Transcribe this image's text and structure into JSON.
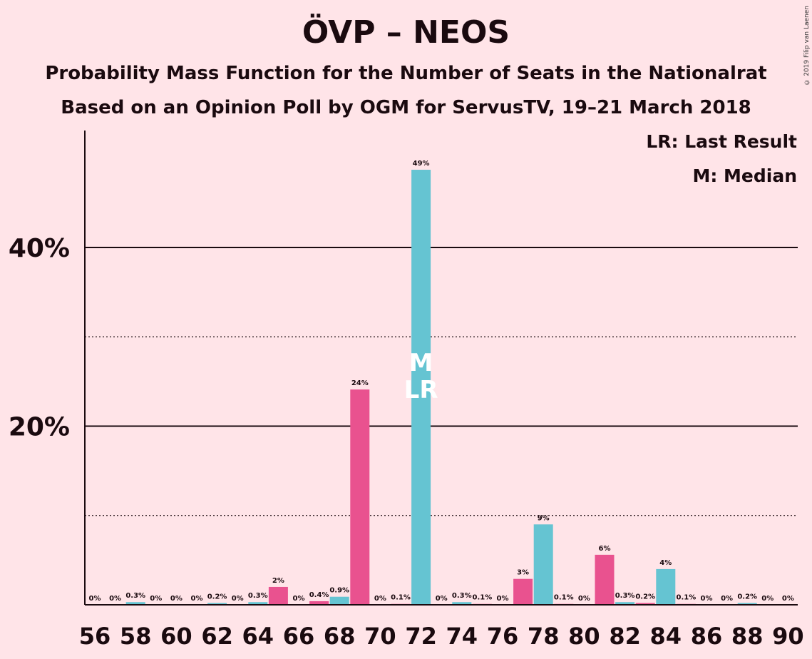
{
  "header": {
    "title": "ÖVP – NEOS",
    "subtitle": "Probability Mass Function for the Number of Seats in the Nationalrat",
    "subtitle2": "Based on an Opinion Poll by OGM for ServusTV, 19–21 March 2018",
    "copyright": "© 2019 Filip van Laenen"
  },
  "legend": {
    "last_result": "LR: Last Result",
    "median": "M: Median"
  },
  "colors": {
    "background": "#ffe4e8",
    "teal": "#65c4d2",
    "pink": "#e9528f",
    "text": "#1a0a0f"
  },
  "chart_data": {
    "type": "bar",
    "title": "ÖVP – NEOS",
    "xlabel": "",
    "ylabel": "",
    "ylim": [
      0,
      53
    ],
    "y_major_ticks": [
      20,
      40
    ],
    "y_major_tick_labels": [
      "20%",
      "40%"
    ],
    "y_minor_gridlines": [
      10,
      30
    ],
    "x_tick_labels": [
      "56",
      "58",
      "60",
      "62",
      "64",
      "66",
      "68",
      "70",
      "72",
      "74",
      "76",
      "78",
      "80",
      "82",
      "84",
      "86",
      "88",
      "90"
    ],
    "markers": {
      "median_seat": 72,
      "median_label": "M",
      "last_result_seat": 72,
      "last_result_label": "LR"
    },
    "bars": [
      {
        "seat": 56,
        "value": 0,
        "label": "0%",
        "color": "teal"
      },
      {
        "seat": 57,
        "value": 0,
        "label": "0%",
        "color": "pink"
      },
      {
        "seat": 58,
        "value": 0.3,
        "label": "0.3%",
        "color": "teal"
      },
      {
        "seat": 59,
        "value": 0,
        "label": "0%",
        "color": "pink"
      },
      {
        "seat": 60,
        "value": 0,
        "label": "0%",
        "color": "teal"
      },
      {
        "seat": 61,
        "value": 0,
        "label": "0%",
        "color": "pink"
      },
      {
        "seat": 62,
        "value": 0.2,
        "label": "0.2%",
        "color": "teal"
      },
      {
        "seat": 63,
        "value": 0,
        "label": "0%",
        "color": "pink"
      },
      {
        "seat": 64,
        "value": 0.3,
        "label": "0.3%",
        "color": "teal"
      },
      {
        "seat": 65,
        "value": 2,
        "label": "2%",
        "color": "pink"
      },
      {
        "seat": 66,
        "value": 0,
        "label": "0%",
        "color": "teal"
      },
      {
        "seat": 67,
        "value": 0.4,
        "label": "0.4%",
        "color": "pink"
      },
      {
        "seat": 68,
        "value": 0.9,
        "label": "0.9%",
        "color": "teal"
      },
      {
        "seat": 69,
        "value": 24.1,
        "label": "24%",
        "color": "pink"
      },
      {
        "seat": 70,
        "value": 0,
        "label": "0%",
        "color": "teal"
      },
      {
        "seat": 71,
        "value": 0.1,
        "label": "0.1%",
        "color": "pink"
      },
      {
        "seat": 72,
        "value": 48.7,
        "label": "49%",
        "color": "teal"
      },
      {
        "seat": 73,
        "value": 0,
        "label": "0%",
        "color": "pink"
      },
      {
        "seat": 74,
        "value": 0.3,
        "label": "0.3%",
        "color": "teal"
      },
      {
        "seat": 75,
        "value": 0.1,
        "label": "0.1%",
        "color": "pink"
      },
      {
        "seat": 76,
        "value": 0,
        "label": "0%",
        "color": "teal"
      },
      {
        "seat": 77,
        "value": 2.9,
        "label": "3%",
        "color": "pink"
      },
      {
        "seat": 78,
        "value": 9,
        "label": "9%",
        "color": "teal"
      },
      {
        "seat": 79,
        "value": 0.1,
        "label": "0.1%",
        "color": "pink"
      },
      {
        "seat": 80,
        "value": 0,
        "label": "0%",
        "color": "teal"
      },
      {
        "seat": 81,
        "value": 5.6,
        "label": "6%",
        "color": "pink"
      },
      {
        "seat": 82,
        "value": 0.3,
        "label": "0.3%",
        "color": "teal"
      },
      {
        "seat": 83,
        "value": 0.2,
        "label": "0.2%",
        "color": "pink"
      },
      {
        "seat": 84,
        "value": 4,
        "label": "4%",
        "color": "teal"
      },
      {
        "seat": 85,
        "value": 0.1,
        "label": "0.1%",
        "color": "pink"
      },
      {
        "seat": 86,
        "value": 0,
        "label": "0%",
        "color": "teal"
      },
      {
        "seat": 87,
        "value": 0,
        "label": "0%",
        "color": "pink"
      },
      {
        "seat": 88,
        "value": 0.2,
        "label": "0.2%",
        "color": "teal"
      },
      {
        "seat": 89,
        "value": 0,
        "label": "0%",
        "color": "pink"
      },
      {
        "seat": 90,
        "value": 0,
        "label": "0%",
        "color": "teal"
      }
    ]
  }
}
